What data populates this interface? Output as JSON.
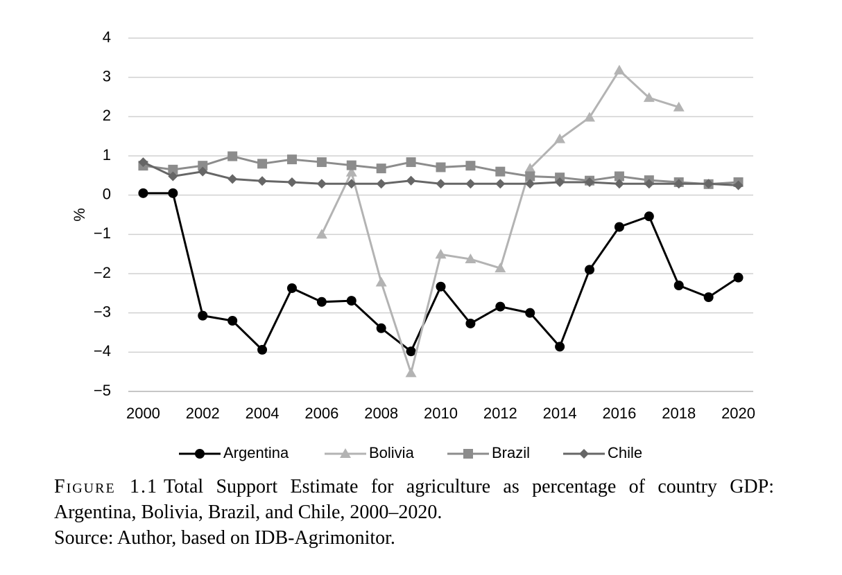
{
  "chart_data": {
    "type": "line",
    "y_label": "%",
    "x": [
      2000,
      2001,
      2002,
      2003,
      2004,
      2005,
      2006,
      2007,
      2008,
      2009,
      2010,
      2011,
      2012,
      2013,
      2014,
      2015,
      2016,
      2017,
      2018,
      2019,
      2020
    ],
    "xlim": [
      1999.5,
      2020.5
    ],
    "xticks": [
      2000,
      2002,
      2004,
      2006,
      2008,
      2010,
      2012,
      2014,
      2016,
      2018,
      2020
    ],
    "ylim": [
      -5,
      4
    ],
    "yticks": [
      {
        "value": -5,
        "label": "−5"
      },
      {
        "value": -4,
        "label": "−4"
      },
      {
        "value": -3,
        "label": "−3"
      },
      {
        "value": -2,
        "label": "−2"
      },
      {
        "value": -1,
        "label": "−1"
      },
      0,
      1,
      2,
      3,
      4
    ],
    "grid": true,
    "legend": "bottom",
    "series": [
      {
        "name": "Argentina",
        "color": "#000000",
        "marker": "circle",
        "values": [
          0.05,
          0.05,
          -3.07,
          -3.2,
          -3.94,
          -2.37,
          -2.72,
          -2.69,
          -3.39,
          -3.98,
          -2.33,
          -3.27,
          -2.84,
          -3.0,
          -3.86,
          -1.9,
          -0.81,
          -0.54,
          -2.3,
          -2.6,
          -2.1
        ]
      },
      {
        "name": "Bolivia",
        "color": "#b3b3b3",
        "marker": "triangle",
        "values": [
          null,
          null,
          null,
          null,
          null,
          null,
          -1.0,
          0.58,
          -2.22,
          -4.53,
          -1.51,
          -1.63,
          -1.86,
          0.68,
          1.43,
          1.98,
          3.18,
          2.48,
          2.24,
          null,
          null
        ]
      },
      {
        "name": "Brazil",
        "color": "#8c8c8c",
        "marker": "square",
        "values": [
          0.75,
          0.65,
          0.75,
          0.99,
          0.8,
          0.91,
          0.84,
          0.76,
          0.68,
          0.84,
          0.71,
          0.75,
          0.6,
          0.48,
          0.45,
          0.37,
          0.48,
          0.38,
          0.33,
          0.28,
          0.33
        ]
      },
      {
        "name": "Chile",
        "color": "#666666",
        "marker": "diamond",
        "values": [
          0.84,
          0.48,
          0.6,
          0.41,
          0.36,
          0.33,
          0.29,
          0.29,
          0.29,
          0.37,
          0.29,
          0.29,
          0.29,
          0.29,
          0.33,
          0.33,
          0.29,
          0.29,
          0.29,
          0.29,
          0.25
        ]
      }
    ]
  },
  "caption": {
    "label": "Figure 1.1",
    "text": "Total Support Estimate for agriculture as percentage of country GDP: Argentina, Bolivia, Brazil, and Chile, 2000–2020.",
    "source": "Source: Author, based on IDB-Agrimonitor."
  }
}
